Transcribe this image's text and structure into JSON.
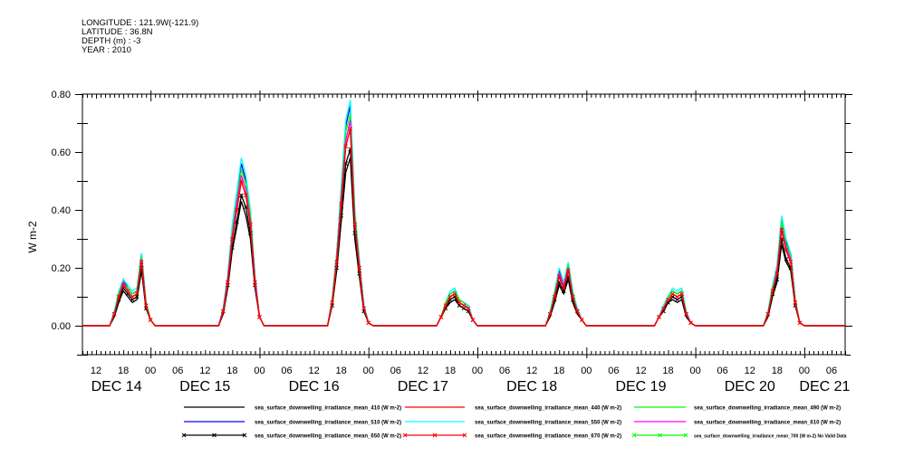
{
  "header": {
    "longitude": "LONGITUDE : 121.9W(-121.9)",
    "latitude": "LATITUDE : 36.8N",
    "depth": "DEPTH (m) : -3",
    "year": "YEAR : 2010"
  },
  "chart_data": {
    "type": "line",
    "title": "",
    "ylabel": "W m-2",
    "xlabel": "",
    "ylim": [
      -0.1,
      0.8
    ],
    "y_ticks": [
      "0.00",
      "0.20",
      "0.40",
      "0.60",
      "0.80"
    ],
    "x_range": {
      "start": "DEC 14 09:00",
      "hours": 168
    },
    "x_hour_labels": [
      "12",
      "18",
      "00",
      "06",
      "12",
      "18",
      "00",
      "06",
      "12",
      "18",
      "00",
      "06",
      "12",
      "18",
      "00",
      "06",
      "12",
      "18",
      "00",
      "06",
      "12",
      "18",
      "00",
      "06",
      "12",
      "18",
      "00",
      "06"
    ],
    "x_day_labels": [
      "DEC 14",
      "DEC 15",
      "DEC 16",
      "DEC 17",
      "DEC 18",
      "DEC 19",
      "DEC 20",
      "DEC 21"
    ],
    "sampling": "hourly, each day's values start at 15:00 UTC; zero otherwise",
    "series": [
      {
        "name": "sea_surface_downwelling_irradiance_mean_410 (W m-2)",
        "color": "#000000",
        "marker": "none",
        "days": [
          [
            0,
            0.03,
            0.08,
            0.12,
            0.1,
            0.08,
            0.09,
            0.19,
            0.06,
            0.02,
            0
          ],
          [
            0,
            0.04,
            0.13,
            0.26,
            0.34,
            0.43,
            0.38,
            0.3,
            0.13,
            0.03,
            0
          ],
          [
            0,
            0.07,
            0.19,
            0.36,
            0.53,
            0.58,
            0.3,
            0.17,
            0.05,
            0.01,
            0
          ],
          [
            0,
            0.03,
            0.06,
            0.08,
            0.09,
            0.07,
            0.06,
            0.05,
            0.02,
            0,
            0
          ],
          [
            0,
            0.03,
            0.08,
            0.14,
            0.11,
            0.16,
            0.08,
            0.04,
            0.02,
            0,
            0
          ],
          [
            0,
            0.03,
            0.05,
            0.08,
            0.09,
            0.08,
            0.09,
            0.03,
            0.01,
            0,
            0
          ],
          [
            0,
            0.03,
            0.1,
            0.15,
            0.28,
            0.22,
            0.19,
            0.07,
            0.01,
            0,
            0
          ]
        ]
      },
      {
        "name": "sea_surface_downwelling_irradiance_mean_440 (W m-2)",
        "color": "#ff0000",
        "marker": "none",
        "days": [
          [
            0,
            0.04,
            0.1,
            0.14,
            0.12,
            0.1,
            0.11,
            0.22,
            0.07,
            0.02,
            0
          ],
          [
            0,
            0.05,
            0.15,
            0.3,
            0.4,
            0.5,
            0.45,
            0.35,
            0.15,
            0.03,
            0
          ],
          [
            0,
            0.08,
            0.22,
            0.42,
            0.62,
            0.68,
            0.35,
            0.2,
            0.06,
            0.01,
            0
          ],
          [
            0,
            0.03,
            0.07,
            0.1,
            0.11,
            0.08,
            0.07,
            0.06,
            0.02,
            0,
            0
          ],
          [
            0,
            0.04,
            0.1,
            0.17,
            0.13,
            0.19,
            0.1,
            0.05,
            0.02,
            0,
            0
          ],
          [
            0,
            0.03,
            0.06,
            0.09,
            0.11,
            0.1,
            0.11,
            0.04,
            0.01,
            0,
            0
          ],
          [
            0,
            0.04,
            0.12,
            0.18,
            0.33,
            0.26,
            0.22,
            0.08,
            0.01,
            0,
            0
          ]
        ]
      },
      {
        "name": "sea_surface_downwelling_irradiance_mean_490 (W m-2)",
        "color": "#00ff00",
        "marker": "none",
        "days": [
          [
            0,
            0.04,
            0.11,
            0.15,
            0.13,
            0.11,
            0.12,
            0.24,
            0.08,
            0.02,
            0
          ],
          [
            0,
            0.05,
            0.16,
            0.32,
            0.43,
            0.54,
            0.49,
            0.38,
            0.16,
            0.03,
            0
          ],
          [
            0,
            0.09,
            0.24,
            0.45,
            0.67,
            0.73,
            0.38,
            0.22,
            0.06,
            0.01,
            0
          ],
          [
            0,
            0.03,
            0.08,
            0.11,
            0.12,
            0.09,
            0.08,
            0.06,
            0.02,
            0,
            0
          ],
          [
            0,
            0.04,
            0.11,
            0.18,
            0.14,
            0.21,
            0.11,
            0.05,
            0.02,
            0,
            0
          ],
          [
            0,
            0.03,
            0.06,
            0.1,
            0.12,
            0.11,
            0.12,
            0.04,
            0.01,
            0,
            0
          ],
          [
            0,
            0.04,
            0.13,
            0.19,
            0.36,
            0.28,
            0.24,
            0.09,
            0.01,
            0,
            0
          ]
        ]
      },
      {
        "name": "sea_surface_downwelling_irradiance_mean_510 (W m-2)",
        "color": "#0000ff",
        "marker": "none",
        "days": [
          [
            0,
            0.045,
            0.11,
            0.16,
            0.13,
            0.11,
            0.12,
            0.25,
            0.08,
            0.02,
            0
          ],
          [
            0,
            0.06,
            0.17,
            0.34,
            0.45,
            0.56,
            0.5,
            0.39,
            0.17,
            0.03,
            0
          ],
          [
            0,
            0.09,
            0.25,
            0.47,
            0.69,
            0.76,
            0.39,
            0.22,
            0.07,
            0.01,
            0
          ],
          [
            0,
            0.03,
            0.08,
            0.11,
            0.12,
            0.09,
            0.08,
            0.07,
            0.02,
            0,
            0
          ],
          [
            0,
            0.04,
            0.11,
            0.19,
            0.15,
            0.21,
            0.11,
            0.06,
            0.02,
            0,
            0
          ],
          [
            0,
            0.03,
            0.07,
            0.1,
            0.12,
            0.11,
            0.12,
            0.04,
            0.01,
            0,
            0
          ],
          [
            0,
            0.04,
            0.13,
            0.2,
            0.37,
            0.29,
            0.25,
            0.09,
            0.01,
            0,
            0
          ]
        ]
      },
      {
        "name": "sea_surface_downwelling_irradiance_mean_550 (W m-2)",
        "color": "#00ffff",
        "marker": "none",
        "days": [
          [
            0,
            0.05,
            0.12,
            0.16,
            0.14,
            0.12,
            0.13,
            0.25,
            0.08,
            0.02,
            0
          ],
          [
            0,
            0.06,
            0.17,
            0.35,
            0.46,
            0.58,
            0.52,
            0.4,
            0.17,
            0.03,
            0
          ],
          [
            0,
            0.09,
            0.25,
            0.48,
            0.71,
            0.78,
            0.4,
            0.23,
            0.07,
            0.01,
            0
          ],
          [
            0,
            0.03,
            0.08,
            0.12,
            0.13,
            0.09,
            0.08,
            0.07,
            0.02,
            0,
            0
          ],
          [
            0,
            0.05,
            0.12,
            0.2,
            0.15,
            0.22,
            0.12,
            0.06,
            0.02,
            0,
            0
          ],
          [
            0,
            0.03,
            0.07,
            0.1,
            0.13,
            0.12,
            0.13,
            0.05,
            0.01,
            0,
            0
          ],
          [
            0,
            0.05,
            0.14,
            0.21,
            0.38,
            0.3,
            0.25,
            0.09,
            0.01,
            0,
            0
          ]
        ]
      },
      {
        "name": "sea_surface_downwelling_irradiance_mean_610 (W m-2)",
        "color": "#ff00ff",
        "marker": "none",
        "days": [
          [
            0,
            0.04,
            0.1,
            0.15,
            0.12,
            0.1,
            0.11,
            0.23,
            0.07,
            0.02,
            0
          ],
          [
            0,
            0.05,
            0.16,
            0.31,
            0.42,
            0.52,
            0.47,
            0.36,
            0.16,
            0.03,
            0
          ],
          [
            0,
            0.08,
            0.23,
            0.44,
            0.64,
            0.71,
            0.36,
            0.21,
            0.06,
            0.01,
            0
          ],
          [
            0,
            0.03,
            0.07,
            0.1,
            0.11,
            0.08,
            0.07,
            0.06,
            0.02,
            0,
            0
          ],
          [
            0,
            0.04,
            0.1,
            0.18,
            0.14,
            0.2,
            0.1,
            0.05,
            0.02,
            0,
            0
          ],
          [
            0,
            0.03,
            0.06,
            0.09,
            0.11,
            0.1,
            0.11,
            0.04,
            0.01,
            0,
            0
          ],
          [
            0,
            0.04,
            0.12,
            0.19,
            0.34,
            0.27,
            0.23,
            0.08,
            0.01,
            0,
            0
          ]
        ]
      },
      {
        "name": "sea_surface_downwelling_irradiance_mean_650 (W m-2)",
        "color": "#000000",
        "marker": "x",
        "days": [
          [
            0,
            0.04,
            0.09,
            0.13,
            0.11,
            0.09,
            0.1,
            0.2,
            0.06,
            0.02,
            0
          ],
          [
            0,
            0.05,
            0.14,
            0.27,
            0.36,
            0.45,
            0.41,
            0.32,
            0.14,
            0.03,
            0
          ],
          [
            0,
            0.07,
            0.2,
            0.38,
            0.56,
            0.61,
            0.32,
            0.18,
            0.05,
            0.01,
            0
          ],
          [
            0,
            0.03,
            0.06,
            0.09,
            0.1,
            0.07,
            0.06,
            0.05,
            0.02,
            0,
            0
          ],
          [
            0,
            0.04,
            0.09,
            0.15,
            0.12,
            0.17,
            0.09,
            0.05,
            0.02,
            0,
            0
          ],
          [
            0,
            0.03,
            0.05,
            0.08,
            0.1,
            0.09,
            0.1,
            0.04,
            0.01,
            0,
            0
          ],
          [
            0,
            0.04,
            0.11,
            0.16,
            0.3,
            0.23,
            0.2,
            0.07,
            0.01,
            0,
            0
          ]
        ]
      },
      {
        "name": "sea_surface_downwelling_irradiance_mean_670 (W m-2)",
        "color": "#ff0000",
        "marker": "x",
        "days": [
          [
            0,
            0.04,
            0.1,
            0.14,
            0.12,
            0.1,
            0.11,
            0.22,
            0.07,
            0.02,
            0
          ],
          [
            0,
            0.05,
            0.15,
            0.3,
            0.4,
            0.5,
            0.45,
            0.35,
            0.15,
            0.03,
            0
          ],
          [
            0,
            0.08,
            0.22,
            0.42,
            0.62,
            0.68,
            0.35,
            0.2,
            0.06,
            0.01,
            0
          ],
          [
            0,
            0.03,
            0.07,
            0.1,
            0.11,
            0.08,
            0.07,
            0.06,
            0.02,
            0,
            0
          ],
          [
            0,
            0.04,
            0.1,
            0.17,
            0.13,
            0.19,
            0.1,
            0.05,
            0.02,
            0,
            0
          ],
          [
            0,
            0.03,
            0.06,
            0.09,
            0.11,
            0.1,
            0.11,
            0.04,
            0.01,
            0,
            0
          ],
          [
            0,
            0.04,
            0.12,
            0.18,
            0.33,
            0.26,
            0.22,
            0.08,
            0.01,
            0,
            0
          ]
        ]
      },
      {
        "name": "sea_surface_downwelling_irradiance_mean_700 (W m-2) No Valid Data",
        "color": "#00ff00",
        "marker": "x",
        "days": []
      }
    ],
    "legend_placement": "bottom"
  }
}
